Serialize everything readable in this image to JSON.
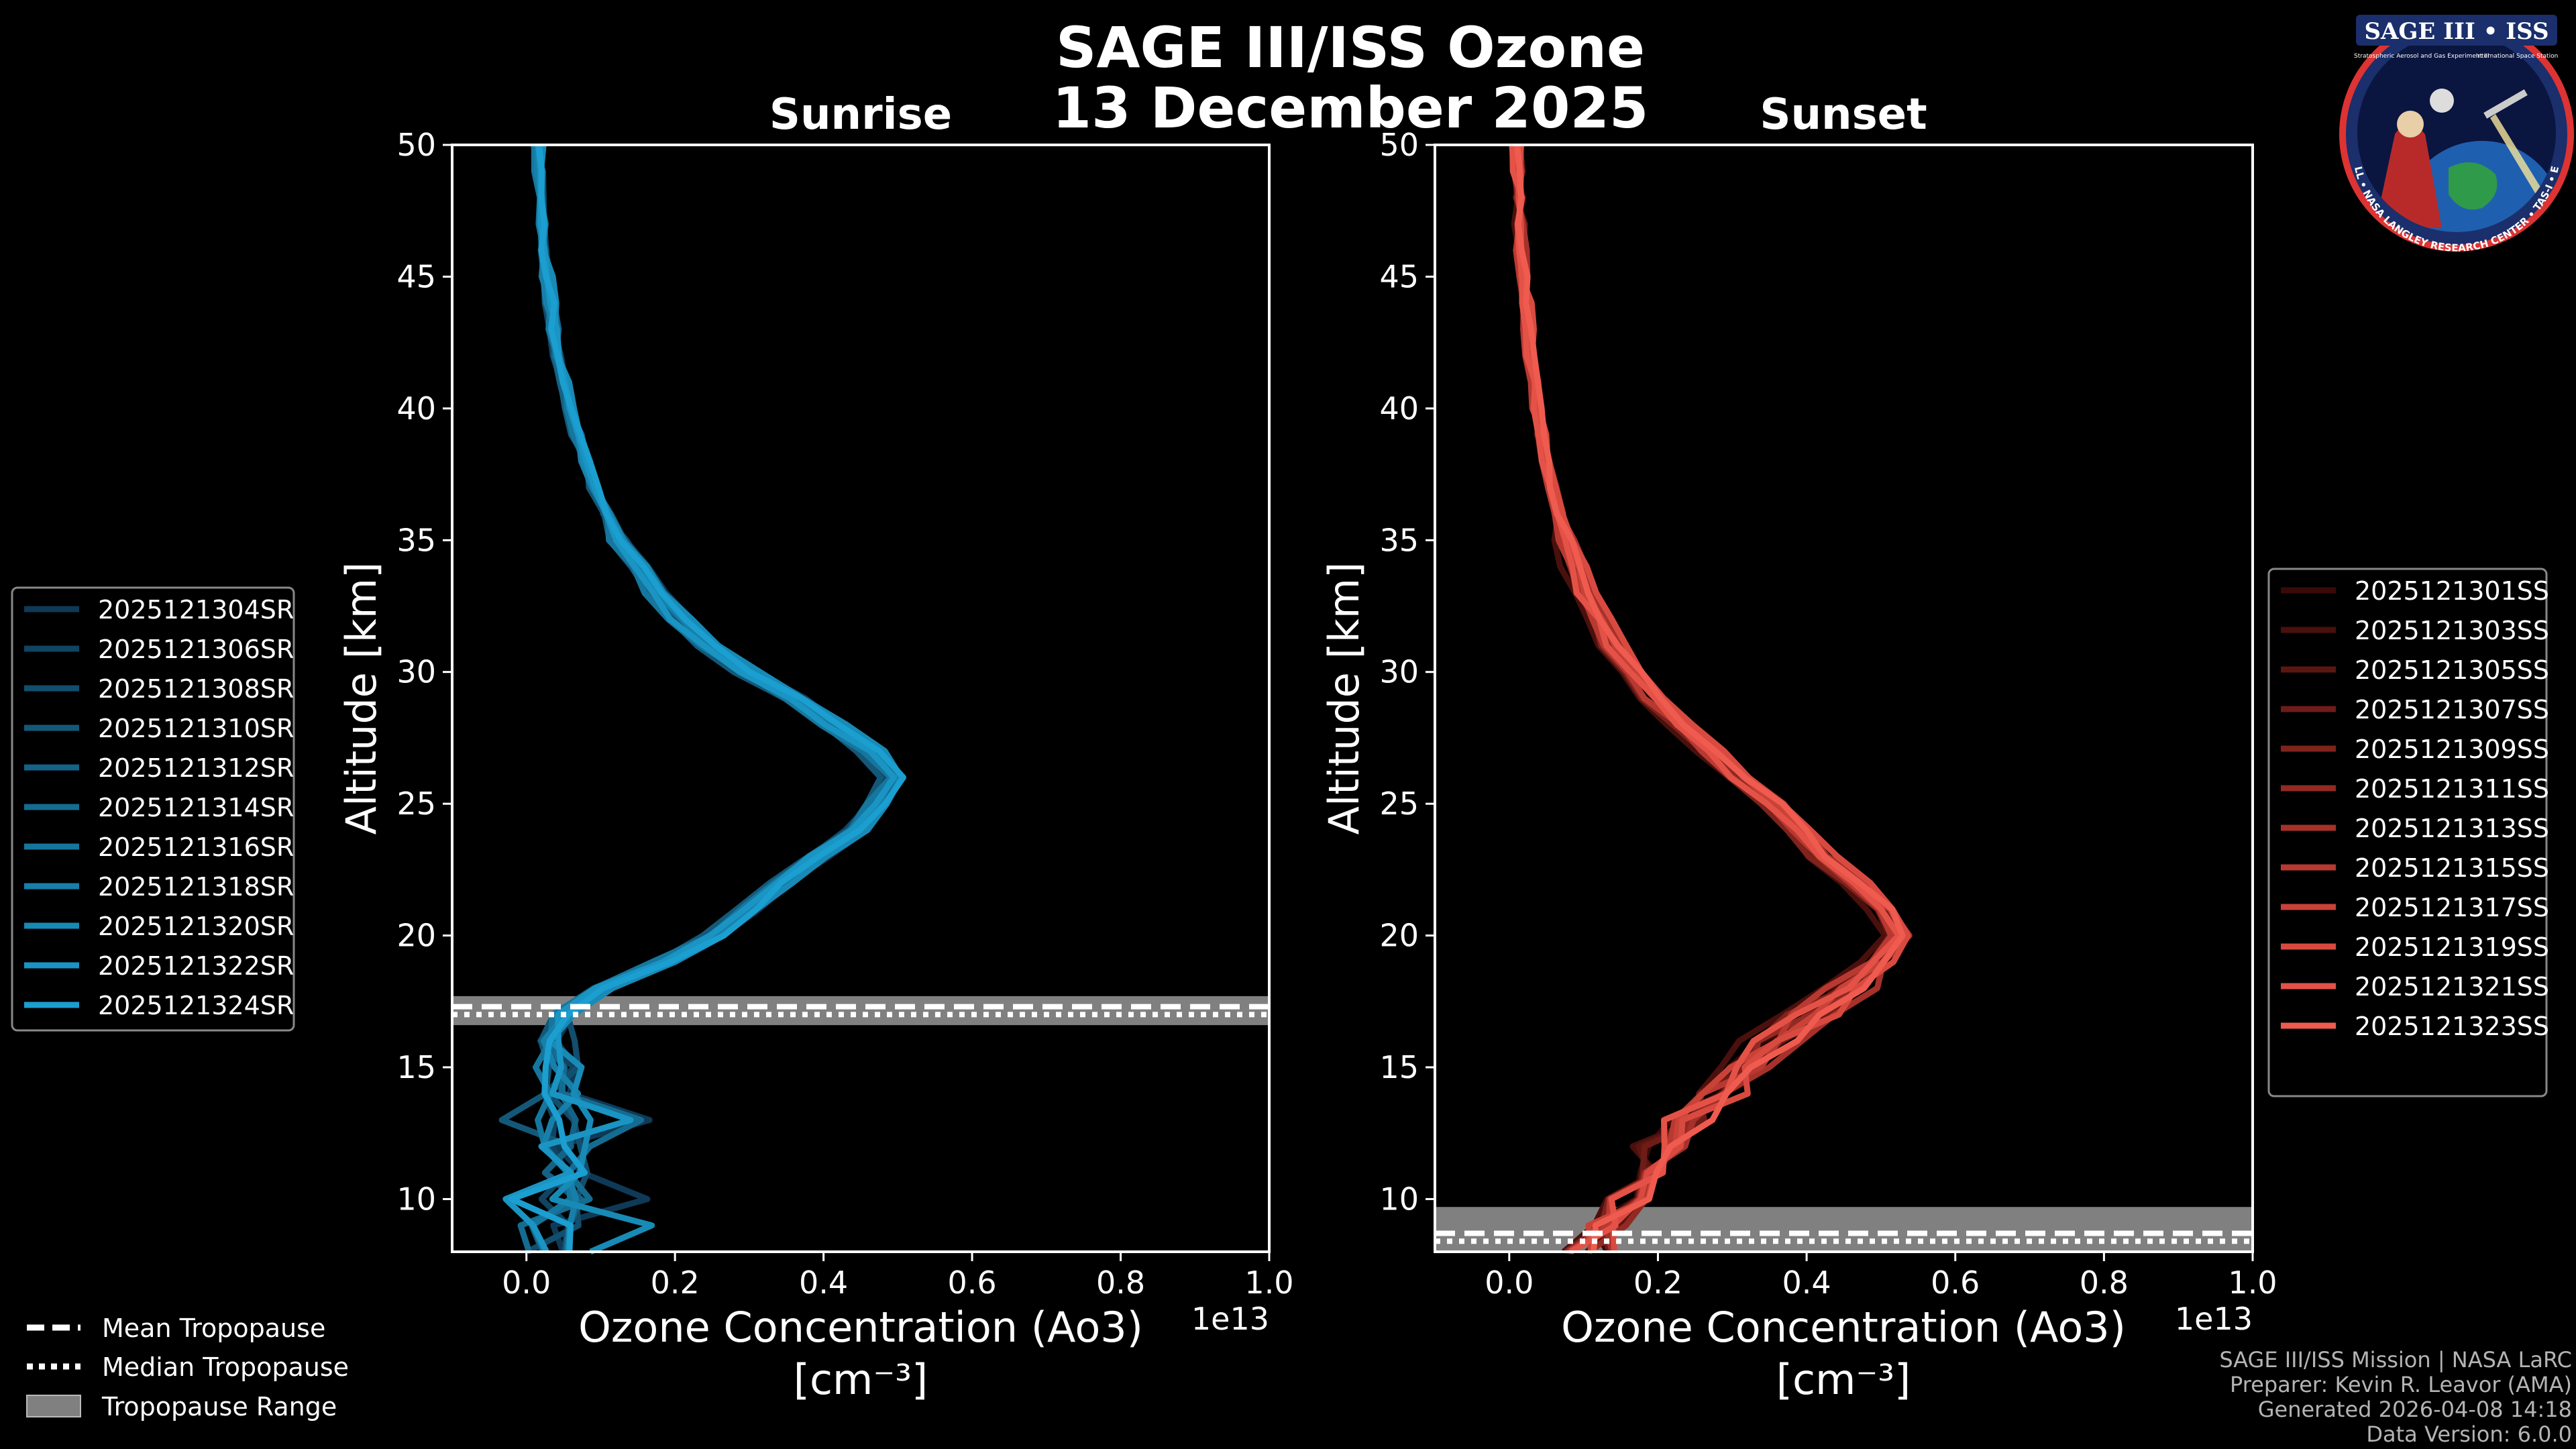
{
  "title_line1": "SAGE III/ISS Ozone",
  "title_line2": "13 December 2025",
  "colors": {
    "background": "#000000",
    "sunrise_base": "#1b8fd2",
    "sunset_base": "#e8584a",
    "tropopause_band": "#808080"
  },
  "chart_data": [
    {
      "type": "line",
      "title": "Sunrise",
      "xlabel_line1": "Ozone Concentration (Ao3)",
      "xlabel_line2": "[cm⁻³]",
      "ylabel": "Altitude [km]",
      "xlim": [
        -0.1,
        1.0
      ],
      "ylim": [
        8,
        50
      ],
      "x_scale_label": "1e13",
      "x_ticks": [
        "0.0",
        "0.2",
        "0.4",
        "0.6",
        "0.8",
        "1.0"
      ],
      "y_ticks": [
        "10",
        "15",
        "20",
        "25",
        "30",
        "35",
        "40",
        "45",
        "50"
      ],
      "tropopause": {
        "range": [
          16.6,
          17.7
        ],
        "mean": 17.3,
        "median": 17.0
      },
      "altitudes": [
        8,
        9,
        10,
        11,
        12,
        13,
        14,
        15,
        16,
        17,
        18,
        19,
        20,
        21,
        22,
        23,
        24,
        25,
        26,
        27,
        28,
        29,
        30,
        31,
        32,
        33,
        34,
        35,
        36,
        37,
        38,
        39,
        40,
        41,
        42,
        43,
        44,
        45,
        46,
        47,
        48,
        49,
        50
      ],
      "base_profile": [
        0.06,
        0.04,
        0.05,
        0.05,
        0.05,
        0.05,
        0.04,
        0.04,
        0.04,
        0.05,
        0.1,
        0.18,
        0.25,
        0.29,
        0.33,
        0.38,
        0.43,
        0.46,
        0.48,
        0.45,
        0.4,
        0.35,
        0.29,
        0.24,
        0.2,
        0.17,
        0.145,
        0.12,
        0.105,
        0.09,
        0.077,
        0.066,
        0.056,
        0.048,
        0.041,
        0.036,
        0.031,
        0.027,
        0.024,
        0.021,
        0.019,
        0.017,
        0.015
      ],
      "series": [
        {
          "name": "2025121304SR",
          "color": "#0e3a57"
        },
        {
          "name": "2025121306SR",
          "color": "#104462"
        },
        {
          "name": "2025121308SR",
          "color": "#124e6e"
        },
        {
          "name": "2025121310SR",
          "color": "#135879"
        },
        {
          "name": "2025121312SR",
          "color": "#146285"
        },
        {
          "name": "2025121314SR",
          "color": "#156c91"
        },
        {
          "name": "2025121316SR",
          "color": "#16769d"
        },
        {
          "name": "2025121318SR",
          "color": "#1780aa"
        },
        {
          "name": "2025121320SR",
          "color": "#188ab6"
        },
        {
          "name": "2025121322SR",
          "color": "#1a94c3"
        },
        {
          "name": "2025121324SR",
          "color": "#1b9ed0"
        }
      ]
    },
    {
      "type": "line",
      "title": "Sunset",
      "xlabel_line1": "Ozone Concentration (Ao3)",
      "xlabel_line2": "[cm⁻³]",
      "ylabel": "Altitude [km]",
      "xlim": [
        -0.1,
        1.0
      ],
      "ylim": [
        8,
        50
      ],
      "x_scale_label": "1e13",
      "x_ticks": [
        "0.0",
        "0.2",
        "0.4",
        "0.6",
        "0.8",
        "1.0"
      ],
      "y_ticks": [
        "10",
        "15",
        "20",
        "25",
        "30",
        "35",
        "40",
        "45",
        "50"
      ],
      "tropopause": {
        "range": [
          8.0,
          9.7
        ],
        "mean": 8.7,
        "median": 8.4
      },
      "altitudes": [
        8,
        9,
        10,
        11,
        12,
        13,
        14,
        15,
        16,
        17,
        18,
        19,
        20,
        21,
        22,
        23,
        24,
        25,
        26,
        27,
        28,
        29,
        30,
        31,
        32,
        33,
        34,
        35,
        36,
        37,
        38,
        39,
        40,
        41,
        42,
        43,
        44,
        45,
        46,
        47,
        48,
        49,
        50
      ],
      "base_profile": [
        0.12,
        0.14,
        0.17,
        0.2,
        0.22,
        0.26,
        0.3,
        0.34,
        0.38,
        0.43,
        0.49,
        0.53,
        0.56,
        0.54,
        0.5,
        0.45,
        0.42,
        0.38,
        0.33,
        0.29,
        0.25,
        0.21,
        0.18,
        0.15,
        0.13,
        0.11,
        0.095,
        0.082,
        0.071,
        0.062,
        0.054,
        0.047,
        0.041,
        0.036,
        0.031,
        0.027,
        0.024,
        0.021,
        0.018,
        0.016,
        0.014,
        0.013,
        0.012
      ],
      "series": [
        {
          "name": "2025121301SS",
          "color": "#3a0a08"
        },
        {
          "name": "2025121303SS",
          "color": "#4a100d"
        },
        {
          "name": "2025121305SS",
          "color": "#5c1612"
        },
        {
          "name": "2025121307SS",
          "color": "#6e1c17"
        },
        {
          "name": "2025121309SS",
          "color": "#80231d"
        },
        {
          "name": "2025121311SS",
          "color": "#922a23"
        },
        {
          "name": "2025121313SS",
          "color": "#a5312a"
        },
        {
          "name": "2025121315SS",
          "color": "#b83931"
        },
        {
          "name": "2025121317SS",
          "color": "#c94238"
        },
        {
          "name": "2025121319SS",
          "color": "#d84a40"
        },
        {
          "name": "2025121321SS",
          "color": "#e45247"
        },
        {
          "name": "2025121323SS",
          "color": "#ef5b4f"
        }
      ]
    }
  ],
  "tropopause_legend": {
    "mean": "Mean Tropopause",
    "median": "Median Tropopause",
    "range": "Tropopause Range"
  },
  "footer": {
    "line1": "SAGE III/ISS Mission | NASA LaRC",
    "line2": "Preparer: Kevin R. Leavor (AMA)",
    "line3": "Generated 2026-04-08 14:18",
    "line4": "Data Version: 6.0.0"
  },
  "logo": {
    "title": "SAGE III • ISS",
    "subtitle": "Stratospheric Aerosol and Gas Experiment III",
    "station": "International Space Station",
    "ring": "BALL • NASA LANGLEY RESEARCH CENTER • TAS-I • ESA"
  }
}
